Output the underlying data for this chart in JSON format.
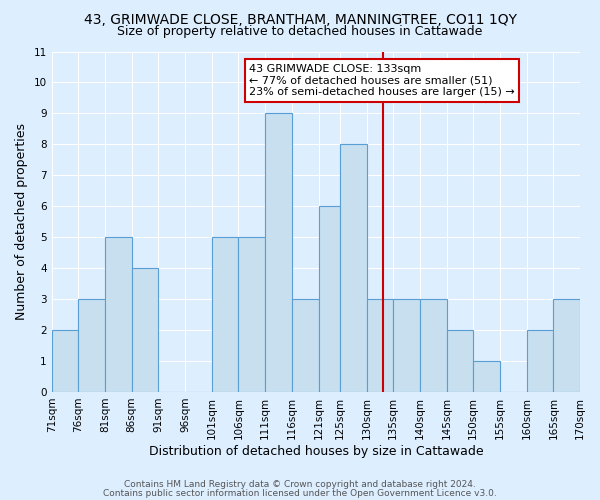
{
  "title1": "43, GRIMWADE CLOSE, BRANTHAM, MANNINGTREE, CO11 1QY",
  "title2": "Size of property relative to detached houses in Cattawade",
  "xlabel": "Distribution of detached houses by size in Cattawade",
  "ylabel": "Number of detached properties",
  "bin_edges": [
    71,
    76,
    81,
    86,
    91,
    96,
    101,
    106,
    111,
    116,
    121,
    125,
    130,
    135,
    140,
    145,
    150,
    155,
    160,
    165,
    170
  ],
  "bar_heights": [
    2,
    3,
    5,
    4,
    0,
    0,
    5,
    5,
    9,
    3,
    6,
    8,
    3,
    3,
    3,
    2,
    1,
    0,
    2,
    3
  ],
  "bar_color": "#c8dff0",
  "bar_edge_color": "#5a9fd4",
  "property_value": 133,
  "marker_line_color": "#cc0000",
  "annotation_line1": "43 GRIMWADE CLOSE: 133sqm",
  "annotation_line2": "← 77% of detached houses are smaller (51)",
  "annotation_line3": "23% of semi-detached houses are larger (15) →",
  "annotation_box_color": "#ffffff",
  "annotation_box_edge_color": "#cc0000",
  "ylim": [
    0,
    11
  ],
  "yticks": [
    0,
    1,
    2,
    3,
    4,
    5,
    6,
    7,
    8,
    9,
    10,
    11
  ],
  "footer1": "Contains HM Land Registry data © Crown copyright and database right 2024.",
  "footer2": "Contains public sector information licensed under the Open Government Licence v3.0.",
  "background_color": "#ddeeff",
  "plot_background": "#ddeeff",
  "title1_fontsize": 10,
  "title2_fontsize": 9,
  "xlabel_fontsize": 9,
  "ylabel_fontsize": 9,
  "tick_fontsize": 7.5,
  "annotation_fontsize": 8,
  "footer_fontsize": 6.5
}
